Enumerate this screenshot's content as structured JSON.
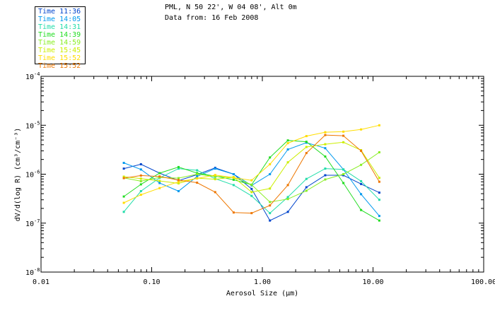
{
  "header": {
    "location": "PML, N 50 22', W 04 08', Alt 0m",
    "date_line": "Data from: 16 Feb 2008"
  },
  "colors": {
    "axis": "#000000",
    "text": "#000000"
  },
  "chart_data": {
    "type": "line",
    "xlabel": "Aerosol Size (μm)",
    "ylabel": "dV/d(log R) (cm³/cm⁻³)",
    "xscale": "log",
    "yscale": "log",
    "xlim": [
      0.01,
      100
    ],
    "ylim": [
      1e-08,
      0.0001
    ],
    "grid": false,
    "legend_placement": "top-left",
    "x_ticks": [
      {
        "value": 0.01,
        "label": "0.01"
      },
      {
        "value": 0.1,
        "label": "0.10"
      },
      {
        "value": 1,
        "label": "1.00"
      },
      {
        "value": 10,
        "label": "10.00"
      },
      {
        "value": 100,
        "label": "100.00"
      }
    ],
    "y_ticks": [
      {
        "value": 1e-08,
        "mantissa": "10",
        "exponent": "-8"
      },
      {
        "value": 1e-07,
        "mantissa": "10",
        "exponent": "-7"
      },
      {
        "value": 1e-06,
        "mantissa": "10",
        "exponent": "-6"
      },
      {
        "value": 1e-05,
        "mantissa": "10",
        "exponent": "-5"
      },
      {
        "value": 0.0001,
        "mantissa": "10",
        "exponent": "-4"
      }
    ],
    "x": [
      0.056,
      0.08,
      0.118,
      0.175,
      0.257,
      0.375,
      0.55,
      0.8,
      1.17,
      1.7,
      2.5,
      3.7,
      5.4,
      7.8,
      11.4
    ],
    "series": [
      {
        "name": "Time 11:36",
        "color": "#0044cc",
        "values": [
          1.3e-06,
          1.6e-06,
          1.05e-06,
          7.4e-07,
          9.8e-07,
          1.35e-06,
          1e-06,
          5e-07,
          1.13e-07,
          1.7e-07,
          5.4e-07,
          9.5e-07,
          9.5e-07,
          6.3e-07,
          4.2e-07
        ]
      },
      {
        "name": "Time 14:05",
        "color": "#0099ee",
        "values": [
          1.7e-06,
          1.25e-06,
          6.6e-07,
          4.5e-07,
          9e-07,
          1.3e-06,
          1e-06,
          5.9e-07,
          1e-06,
          3.2e-06,
          4.4e-06,
          3.4e-06,
          1.25e-06,
          3.9e-07,
          1.4e-07
        ]
      },
      {
        "name": "Time 14:31",
        "color": "#22ddaa",
        "values": [
          1.7e-07,
          4.5e-07,
          8.4e-07,
          1.3e-06,
          1.2e-06,
          8.1e-07,
          6e-07,
          3.6e-07,
          1.6e-07,
          3.4e-07,
          8e-07,
          1.3e-06,
          1.25e-06,
          7.2e-07,
          3e-07
        ]
      },
      {
        "name": "Time 14:39",
        "color": "#22dd22",
        "values": [
          3.5e-07,
          6.2e-07,
          1.05e-06,
          1.4e-06,
          1.05e-06,
          9.1e-07,
          7.7e-07,
          6.1e-07,
          2.2e-06,
          4.9e-06,
          4.6e-06,
          2.3e-06,
          6.6e-07,
          1.85e-07,
          1.13e-07
        ]
      },
      {
        "name": "Time 14:59",
        "color": "#88ee22",
        "values": [
          8.4e-07,
          7.2e-07,
          8.6e-07,
          8.3e-07,
          1e-06,
          9e-07,
          8.7e-07,
          6.1e-07,
          2.7e-07,
          3.1e-07,
          4.6e-07,
          7.8e-07,
          1e-06,
          1.55e-06,
          2.8e-06
        ]
      },
      {
        "name": "Time 15:45",
        "color": "#ccee00",
        "values": [
          8.9e-07,
          8.1e-07,
          7.3e-07,
          6.5e-07,
          8.3e-07,
          7.9e-07,
          8.7e-07,
          4.3e-07,
          5.1e-07,
          1.75e-06,
          3.6e-06,
          4.1e-06,
          4.5e-06,
          3.1e-06,
          8.4e-07
        ]
      },
      {
        "name": "Time 15:52",
        "color": "#ffdd00",
        "values": [
          2.6e-07,
          3.8e-07,
          5.2e-07,
          7e-07,
          8.2e-07,
          9.6e-07,
          8.5e-07,
          7.5e-07,
          1.6e-06,
          4.3e-06,
          6e-06,
          7.2e-06,
          7.4e-06,
          8.2e-06,
          1e-05
        ]
      },
      {
        "name": "Time 15:52",
        "color": "#ee7700",
        "values": [
          8.3e-07,
          9.4e-07,
          9e-07,
          7.6e-07,
          6.7e-07,
          4.3e-07,
          1.65e-07,
          1.6e-07,
          2.3e-07,
          6e-07,
          2.7e-06,
          6.3e-06,
          6.1e-06,
          3e-06,
          7e-07
        ]
      }
    ]
  }
}
